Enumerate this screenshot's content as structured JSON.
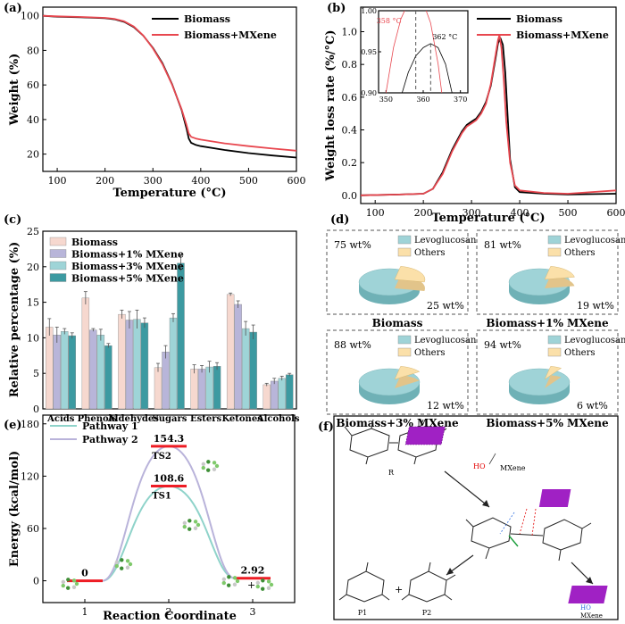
{
  "panel_labels": [
    "(a)",
    "(b)",
    "(c)",
    "(d)",
    "(e)",
    "(f)"
  ],
  "colors": {
    "biomass": "#000000",
    "mxene": "#e8474f",
    "bar_biomass": "#f6d8cf",
    "bar_1": "#b8b5d9",
    "bar_3": "#9ed4d7",
    "bar_5": "#3c9aa1",
    "pie_levo": "#9fd3d7",
    "pie_others": "#fbe0a9",
    "pathway1": "#8fd3ca",
    "pathway2": "#b9b3da",
    "level": "#ee1c24"
  },
  "chart_data": [
    {
      "type": "line",
      "panel": "(a)",
      "xlabel": "Temperature (°C)",
      "ylabel": "Weight (%)",
      "xlim": [
        70,
        600
      ],
      "ylim": [
        10,
        105
      ],
      "xticks": [
        100,
        200,
        300,
        400,
        500,
        600
      ],
      "yticks": [
        20,
        40,
        60,
        80,
        100
      ],
      "series": [
        {
          "name": "Biomass",
          "x": [
            70,
            100,
            150,
            200,
            220,
            240,
            260,
            280,
            300,
            320,
            340,
            360,
            370,
            375,
            380,
            390,
            400,
            450,
            500,
            550,
            600
          ],
          "y": [
            100,
            99.5,
            99.1,
            98.6,
            98.0,
            96.5,
            93.5,
            88.5,
            81.5,
            72.5,
            60.5,
            45.5,
            35,
            29,
            26.5,
            25.3,
            24.6,
            22.4,
            20.6,
            19.2,
            18
          ]
        },
        {
          "name": "Biomass+MXene",
          "x": [
            70,
            100,
            150,
            200,
            220,
            240,
            260,
            280,
            300,
            320,
            340,
            360,
            370,
            375,
            380,
            390,
            400,
            450,
            500,
            550,
            600
          ],
          "y": [
            100,
            99.7,
            99.3,
            98.8,
            98.2,
            96.8,
            93.8,
            88.6,
            81.2,
            72,
            60.2,
            46,
            37,
            32,
            30,
            29,
            28.4,
            26.2,
            24.6,
            23.2,
            22
          ]
        }
      ]
    },
    {
      "type": "line",
      "panel": "(b)",
      "xlabel": "Temperature (°C)",
      "ylabel": "Weight loss rate (%/°C)",
      "xlim": [
        70,
        600
      ],
      "ylim": [
        -0.05,
        1.15
      ],
      "xticks": [
        100,
        200,
        300,
        400,
        500,
        600
      ],
      "yticks": [
        "0.0",
        "0.2",
        "0.4",
        "0.6",
        "0.8",
        "1.0"
      ],
      "series": [
        {
          "name": "Biomass",
          "x": [
            70,
            150,
            200,
            220,
            240,
            260,
            280,
            290,
            300,
            310,
            320,
            330,
            340,
            350,
            355,
            360,
            365,
            370,
            375,
            380,
            390,
            400,
            450,
            500,
            600
          ],
          "y": [
            0,
            0.005,
            0.01,
            0.04,
            0.14,
            0.28,
            0.39,
            0.43,
            0.45,
            0.47,
            0.51,
            0.57,
            0.67,
            0.84,
            0.93,
            0.96,
            0.92,
            0.75,
            0.48,
            0.22,
            0.05,
            0.02,
            0.01,
            0.005,
            0.01
          ]
        },
        {
          "name": "Biomass+MXene",
          "x": [
            70,
            150,
            200,
            220,
            240,
            260,
            280,
            290,
            300,
            310,
            320,
            330,
            340,
            350,
            355,
            358,
            362,
            367,
            372,
            380,
            390,
            400,
            450,
            500,
            600
          ],
          "y": [
            0,
            0.005,
            0.01,
            0.04,
            0.13,
            0.27,
            0.38,
            0.42,
            0.44,
            0.46,
            0.5,
            0.56,
            0.68,
            0.86,
            0.95,
            0.98,
            0.9,
            0.7,
            0.45,
            0.2,
            0.06,
            0.03,
            0.015,
            0.01,
            0.03
          ]
        }
      ],
      "inset": {
        "xlim": [
          348,
          372
        ],
        "ylim": [
          0.9,
          1.0
        ],
        "xticks": [
          350,
          360,
          370
        ],
        "yticks": [
          "0.90",
          "0.95",
          "1.00"
        ],
        "annotations": [
          {
            "text": "358 °C",
            "series": "Biomass+MXene",
            "x": 358
          },
          {
            "text": "362 °C",
            "series": "Biomass",
            "x": 362
          }
        ],
        "series": [
          {
            "name": "Biomass",
            "x": [
              354,
              356,
              358,
              360,
              362,
              364,
              366,
              368
            ],
            "y": [
              0.895,
              0.925,
              0.945,
              0.955,
              0.96,
              0.955,
              0.935,
              0.895
            ]
          },
          {
            "name": "Biomass+MXene",
            "x": [
              350,
              352,
              354,
              356,
              358,
              360,
              362,
              364,
              365
            ],
            "y": [
              0.9,
              0.955,
              0.99,
              1.01,
              1.02,
              1.01,
              0.985,
              0.935,
              0.9
            ]
          }
        ]
      }
    },
    {
      "type": "bar",
      "panel": "(c)",
      "ylabel": "Relative percentage (%)",
      "ylim": [
        0,
        25
      ],
      "yticks": [
        0,
        5,
        10,
        15,
        20,
        25
      ],
      "categories": [
        "Acids",
        "Phenols",
        "Aldehydes",
        "Sugars",
        "Esters",
        "Ketones",
        "Alcohols"
      ],
      "series": [
        {
          "name": "Biomass",
          "values": [
            11.5,
            15.6,
            13.3,
            5.8,
            5.6,
            16.1,
            3.4
          ],
          "errors": [
            1.2,
            0.9,
            0.6,
            0.6,
            0.6,
            0.2,
            0.2
          ]
        },
        {
          "name": "Biomass+1% MXene",
          "values": [
            10.4,
            11.1,
            12.5,
            8.0,
            5.6,
            14.7,
            3.9
          ],
          "errors": [
            1.1,
            0.2,
            1.2,
            0.9,
            0.5,
            0.5,
            0.4
          ]
        },
        {
          "name": "Biomass+3% MXene",
          "values": [
            10.9,
            10.4,
            12.6,
            12.8,
            5.9,
            11.3,
            4.3
          ],
          "errors": [
            0.4,
            0.8,
            1.3,
            0.6,
            0.8,
            1.0,
            0.3
          ]
        },
        {
          "name": "Biomass+5% MXene",
          "values": [
            10.3,
            8.9,
            12.1,
            20.5,
            6.0,
            10.8,
            4.8
          ],
          "errors": [
            0.4,
            0.3,
            0.7,
            1.1,
            0.5,
            1.0,
            0.2
          ]
        }
      ]
    },
    {
      "type": "pie",
      "panel": "(d)",
      "legend": [
        "Levoglucosan",
        "Others"
      ],
      "pies": [
        {
          "title": "Biomass",
          "levoglucosan": 75,
          "others": 25,
          "levo_label": "75 wt%",
          "others_label": "25 wt%"
        },
        {
          "title": "Biomass+1% MXene",
          "levoglucosan": 81,
          "others": 19,
          "levo_label": "81 wt%",
          "others_label": "19 wt%"
        },
        {
          "title": "Biomass+3% MXene",
          "levoglucosan": 88,
          "others": 12,
          "levo_label": "88 wt%",
          "others_label": "12 wt%"
        },
        {
          "title": "Biomass+5% MXene",
          "levoglucosan": 94,
          "others": 6,
          "levo_label": "94 wt%",
          "others_label": "6 wt%"
        }
      ]
    },
    {
      "type": "line",
      "panel": "(e)",
      "xlabel": "Reaction Coordinate",
      "ylabel": "Energy (kcal/mol)",
      "xlim": [
        0.5,
        3.5
      ],
      "ylim": [
        -25,
        190
      ],
      "xticks": [
        1,
        2,
        3
      ],
      "yticks": [
        0,
        60,
        120,
        180
      ],
      "series": [
        {
          "name": "Pathway 1",
          "points": [
            [
              1,
              0
            ],
            [
              2,
              108.6
            ],
            [
              3,
              2.92
            ]
          ]
        },
        {
          "name": "Pathway 2",
          "points": [
            [
              1,
              0
            ],
            [
              2,
              154.3
            ],
            [
              3,
              2.92
            ]
          ]
        }
      ],
      "levels": [
        {
          "label": "0",
          "x": 1,
          "y": 0
        },
        {
          "label": "108.6",
          "x": 2,
          "y": 108.6,
          "ts": "TS1"
        },
        {
          "label": "154.3",
          "x": 2,
          "y": 154.3,
          "ts": "TS2"
        },
        {
          "label": "2.92",
          "x": 3,
          "y": 2.92
        }
      ]
    }
  ],
  "scheme": {
    "labels": {
      "reactant": "R",
      "mxene_top": "MXene",
      "p1": "P1",
      "p2": "P2",
      "mxene_bottom": "MXene",
      "ho_top": "HO",
      "ho_bottom": "HO"
    }
  }
}
